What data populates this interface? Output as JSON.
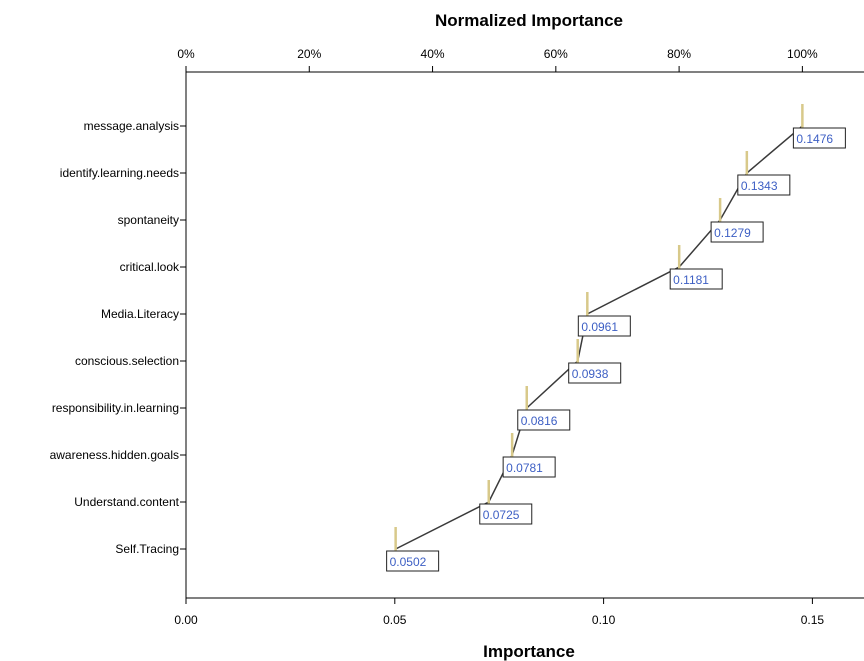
{
  "chart_data": {
    "type": "line",
    "top_axis_title": "Normalized Importance",
    "bottom_axis_title": "Importance",
    "top_ticks": [
      "0%",
      "20%",
      "40%",
      "60%",
      "80%",
      "100%"
    ],
    "bottom_ticks": [
      "0.00",
      "0.05",
      "0.10",
      "0.15"
    ],
    "xlim": [
      0,
      0.1476
    ],
    "categories": [
      "message.analysis",
      "identify.learning.needs",
      "spontaneity",
      "critical.look",
      "Media.Literacy",
      "conscious.selection",
      "responsibility.in.learning",
      "awareness.hidden.goals",
      "Understand.content",
      "Self.Tracing"
    ],
    "values": [
      0.1476,
      0.1343,
      0.1279,
      0.1181,
      0.0961,
      0.0938,
      0.0816,
      0.0781,
      0.0725,
      0.0502
    ],
    "data_labels": [
      "0.1476",
      "0.1343",
      "0.1279",
      "0.1181",
      "0.0961",
      "0.0938",
      "0.0816",
      "0.0781",
      "0.0725",
      "0.0502"
    ],
    "colors": {
      "line": "#3a3a3a",
      "marker": "#d8c98a",
      "label_text": "#3d5fc4",
      "label_border": "#222222"
    }
  }
}
